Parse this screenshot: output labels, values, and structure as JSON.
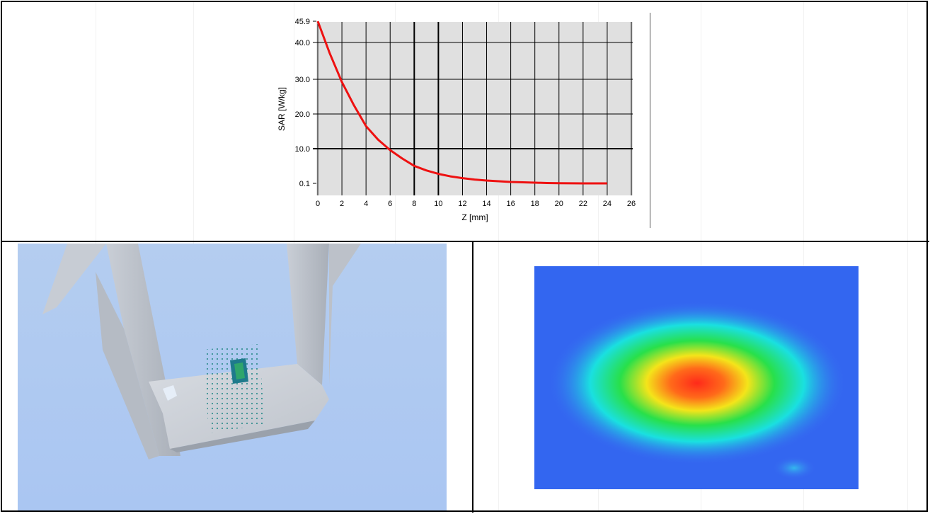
{
  "chart_data": {
    "type": "line",
    "title": "",
    "xlabel": "Z [mm]",
    "ylabel": "SAR [W/kg]",
    "xlim": [
      0,
      26
    ],
    "x_ticks": [
      0,
      2,
      4,
      6,
      8,
      10,
      12,
      14,
      16,
      18,
      20,
      22,
      24,
      26
    ],
    "y_ticks": [
      0.1,
      10.0,
      20.0,
      30.0,
      40.0,
      45.9
    ],
    "y_tick_labels": [
      "0.1",
      "10.0",
      "20.0",
      "30.0",
      "40.0",
      "45.9"
    ],
    "ylim": [
      0.1,
      45.9
    ],
    "grid": true,
    "colors": {
      "line": "#ee1111",
      "plot_bg": "#e0e0e0",
      "grid": "#000000"
    },
    "series": [
      {
        "values_x": [
          0,
          1,
          2,
          3,
          4,
          5,
          6,
          7,
          8,
          9,
          10,
          11,
          12,
          13,
          14,
          15,
          16,
          17,
          18,
          19,
          20,
          21,
          22,
          23,
          24
        ],
        "values_y": [
          45.9,
          37.0,
          29.2,
          22.5,
          16.5,
          12.6,
          9.6,
          7.2,
          5.1,
          3.8,
          2.8,
          2.1,
          1.6,
          1.2,
          0.9,
          0.7,
          0.5,
          0.4,
          0.3,
          0.2,
          0.15,
          0.12,
          0.1,
          0.1,
          0.1
        ]
      }
    ]
  },
  "panels": {
    "setup_view": {
      "icon": "phantom-setup-3d-icon"
    },
    "sar_distribution": {
      "icon": "sar-heatmap-icon"
    }
  }
}
